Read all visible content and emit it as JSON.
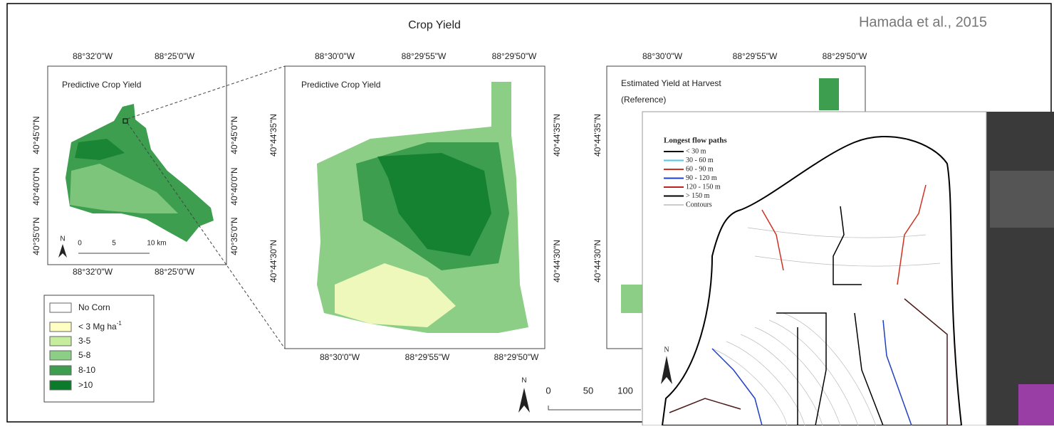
{
  "header": {
    "title": "Crop Yield",
    "credit": "Hamada et al., 2015"
  },
  "maps": [
    {
      "title": "Predictive Crop Yield",
      "top_ticks": [
        "88°32'0\"W",
        "88°25'0\"W"
      ],
      "bottom_ticks": [
        "88°32'0\"W",
        "88°25'0\"W"
      ],
      "left_ticks": [
        "40°45'0\"N",
        "40°40'0\"N",
        "40°35'0\"N"
      ],
      "right_ticks": [
        "40°45'0\"N",
        "40°40'0\"N",
        "40°35'0\"N"
      ],
      "north": "N",
      "scale": [
        "0",
        "5",
        "10 km"
      ]
    },
    {
      "title": "Predictive Crop Yield",
      "top_ticks": [
        "88°30'0\"W",
        "88°29'55\"W",
        "88°29'50\"W"
      ],
      "bottom_ticks": [
        "88°30'0\"W",
        "88°29'55\"W",
        "88°29'50\"W"
      ],
      "left_ticks": [
        "40°44'35\"N",
        "40°44'30\"N"
      ],
      "right_ticks": [
        "40°44'35\"N",
        "40°44'30\"N"
      ],
      "north": "N",
      "scale": [
        "0",
        "50",
        "100"
      ]
    },
    {
      "title": "Estimated Yield at Harvest",
      "subtitle": "(Reference)",
      "top_ticks": [
        "88°30'0\"W",
        "88°29'55\"W",
        "88°29'50\"W"
      ],
      "left_ticks": [
        "40°44'35\"N",
        "40°44'30\"N"
      ]
    }
  ],
  "legend": {
    "items": [
      {
        "label": "No Corn",
        "color": "#ffffff"
      },
      {
        "label": "< 3 Mg ha",
        "sup": "-1",
        "color": "#ffffc4"
      },
      {
        "label": "3-5",
        "color": "#c6ec9e"
      },
      {
        "label": "5-8",
        "color": "#8cce86"
      },
      {
        "label": "8-10",
        "color": "#3c9e4e"
      },
      {
        "label": ">10",
        "color": "#0b7a2b"
      }
    ]
  },
  "flow_legend": {
    "title": "Longest flow paths",
    "north": "N",
    "items": [
      {
        "label": "< 30 m",
        "color": "#000000"
      },
      {
        "label": "30 - 60 m",
        "color": "#4ec8e8"
      },
      {
        "label": "60 - 90 m",
        "color": "#d03020"
      },
      {
        "label": "90 - 120 m",
        "color": "#2040c0"
      },
      {
        "label": "120 - 150 m",
        "color": "#c02020"
      },
      {
        "label": "> 150 m",
        "color": "#000000"
      },
      {
        "label": "Contours",
        "color": "#999999"
      }
    ]
  }
}
